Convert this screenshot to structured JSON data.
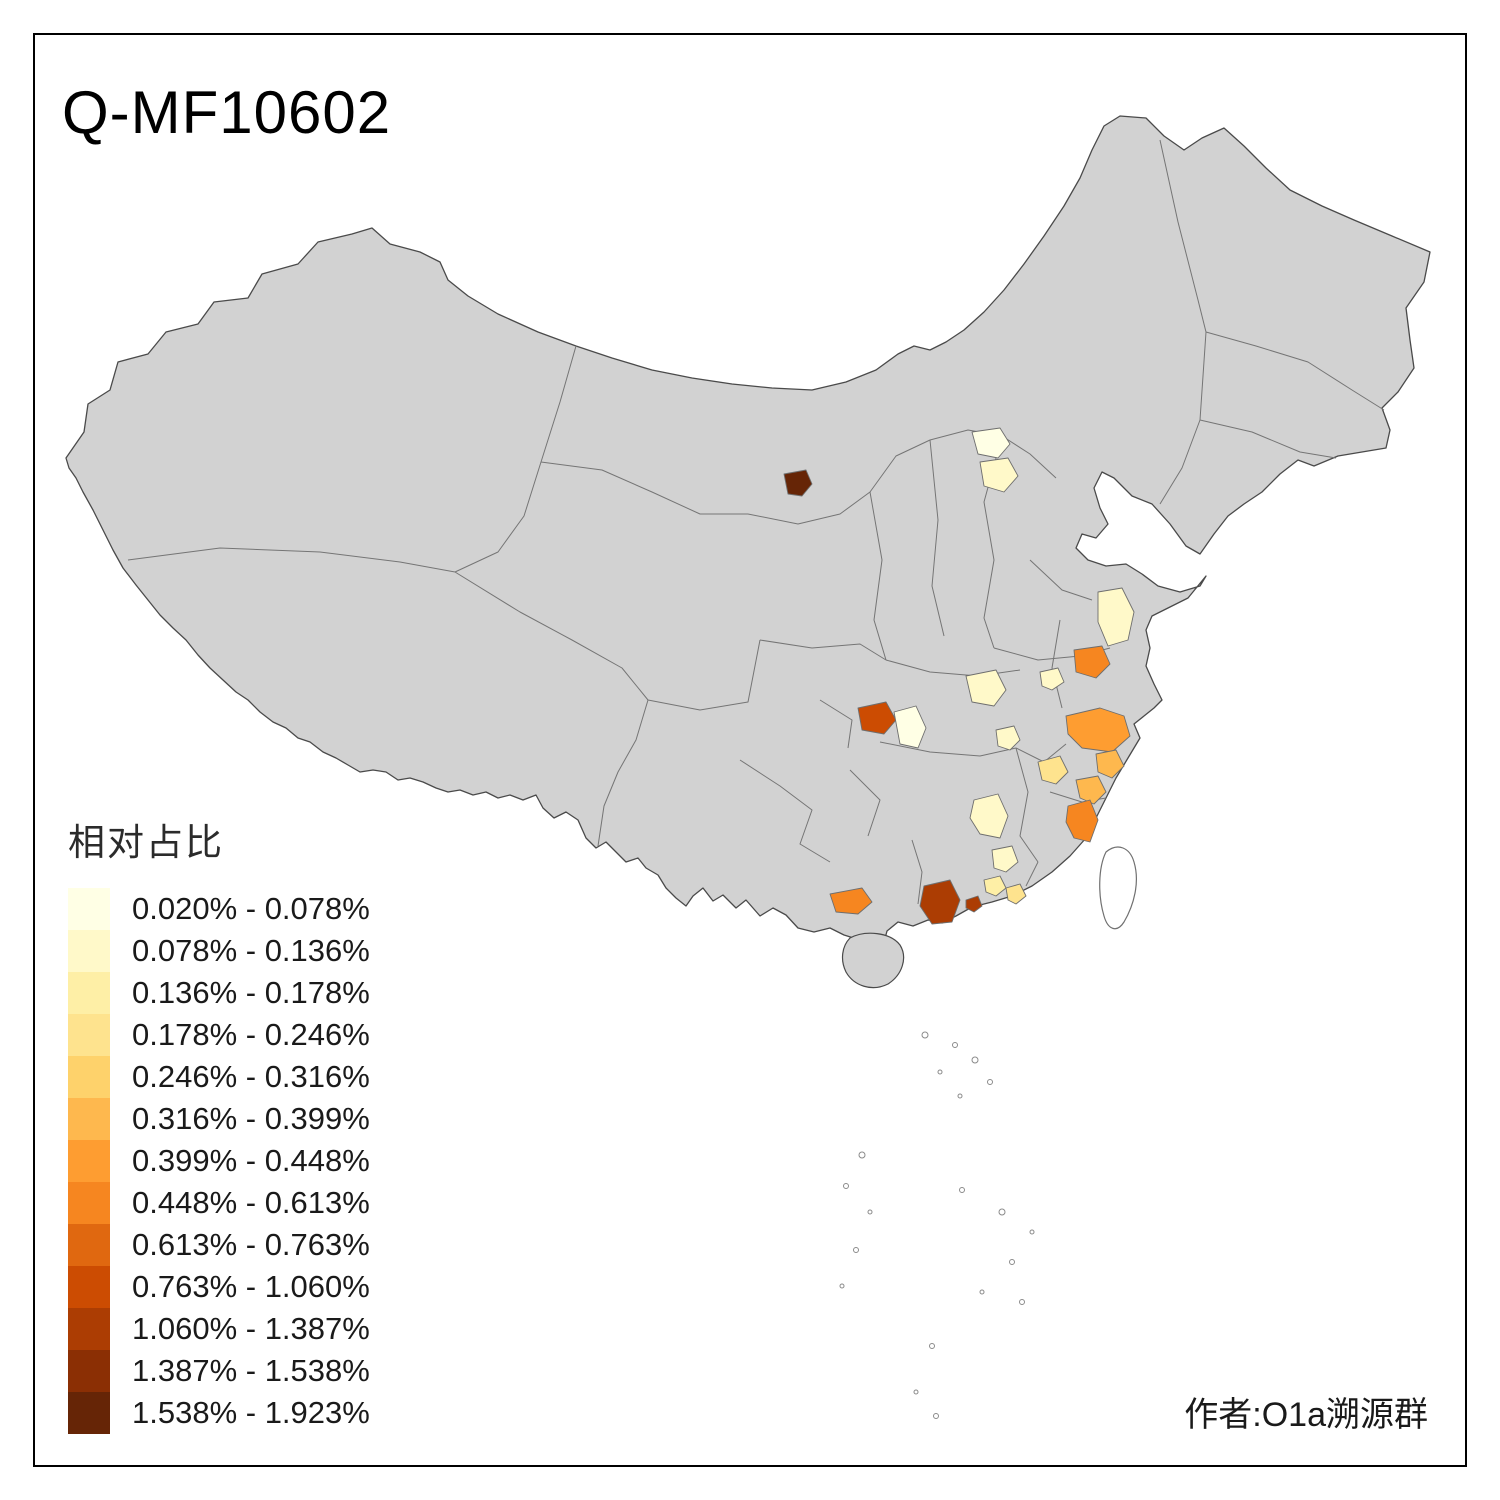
{
  "title": "Q-MF10602",
  "attribution": "作者:O1a溯源群",
  "legend": {
    "title": "相对占比",
    "items": [
      {
        "label": "0.020% - 0.078%",
        "color": "#FFFFE5"
      },
      {
        "label": "0.078% - 0.136%",
        "color": "#FFF9C9"
      },
      {
        "label": "0.136% - 0.178%",
        "color": "#FEEFA6"
      },
      {
        "label": "0.178% - 0.246%",
        "color": "#FEE38E"
      },
      {
        "label": "0.246% - 0.316%",
        "color": "#FED26B"
      },
      {
        "label": "0.316% - 0.399%",
        "color": "#FEB84E"
      },
      {
        "label": "0.399% - 0.448%",
        "color": "#FE9D31"
      },
      {
        "label": "0.448% - 0.613%",
        "color": "#F68620"
      },
      {
        "label": "0.613% - 0.763%",
        "color": "#E06810"
      },
      {
        "label": "0.763% - 1.060%",
        "color": "#CC4C02"
      },
      {
        "label": "1.060% - 1.387%",
        "color": "#AC3D03"
      },
      {
        "label": "1.387% - 1.538%",
        "color": "#8B2F04"
      },
      {
        "label": "1.538% - 1.923%",
        "color": "#662506"
      }
    ]
  },
  "map": {
    "base_color": "#D2D2D2",
    "outline_color": "#4A4A4A",
    "inner_border_color": "#757575",
    "background": "#FFFFFF",
    "regions": [
      {
        "color": "#662506"
      },
      {
        "color": "#FFFFE5"
      },
      {
        "color": "#FFF9C9"
      },
      {
        "color": "#FFF9C9"
      },
      {
        "color": "#F68620"
      },
      {
        "color": "#FFF9C9"
      },
      {
        "color": "#FFF9C9"
      },
      {
        "color": "#CC4C02"
      },
      {
        "color": "#FFFFE5"
      },
      {
        "color": "#FFF9C9"
      },
      {
        "color": "#FE9D31"
      },
      {
        "color": "#FEB84E"
      },
      {
        "color": "#FEE38E"
      },
      {
        "color": "#FEB84E"
      },
      {
        "color": "#F68620"
      },
      {
        "color": "#FFF9C9"
      },
      {
        "color": "#FFF9C9"
      },
      {
        "color": "#F68620"
      },
      {
        "color": "#AC3D03"
      },
      {
        "color": "#AC3D03"
      },
      {
        "color": "#FEEFA6"
      },
      {
        "color": "#FEE38E"
      }
    ]
  }
}
